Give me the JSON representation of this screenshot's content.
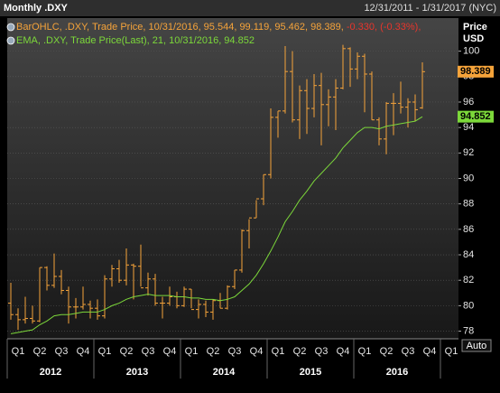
{
  "chart_data": {
    "type": "ohlc",
    "title": "Monthly .DXY",
    "date_range": "12/31/2011 - 1/31/2017 (NYC)",
    "y_axis_title": [
      "Price",
      "USD"
    ],
    "auto_button": "Auto",
    "categories": [
      null,
      "Q1",
      null,
      null,
      "Q2",
      null,
      null,
      "Q3",
      null,
      null,
      "Q4",
      null,
      null,
      "Q1",
      null,
      null,
      "Q2",
      null,
      null,
      "Q3",
      null,
      null,
      "Q4",
      null,
      null,
      "Q1",
      null,
      null,
      "Q2",
      null,
      null,
      "Q3",
      null,
      null,
      "Q4",
      null,
      null,
      "Q1",
      null,
      null,
      "Q2",
      null,
      null,
      "Q3",
      null,
      null,
      "Q4",
      null,
      null,
      "Q1",
      null,
      null,
      "Q2",
      null,
      null,
      "Q3",
      null,
      null,
      "Q4",
      null,
      null,
      "Q1"
    ],
    "year_groups": [
      "2012",
      "2013",
      "2014",
      "2015",
      "2016"
    ],
    "ylim": [
      77.4,
      102.6
    ],
    "yticks": [
      78,
      80,
      82,
      84,
      86,
      88,
      90,
      92,
      94,
      96,
      98,
      100
    ],
    "grid": true,
    "series": [
      {
        "name": "BarOHLC, .DXY, Trade Price, 10/31/2016, 95.544, 99.119, 95.462, 98.389,",
        "change_label": "-0.330, (-0.33%),",
        "change_color": "#e8352c",
        "type": "ohlc",
        "color": "#f5a33a",
        "open": [
          80.2,
          79.3,
          78.9,
          79.0,
          78.8,
          83.0,
          81.6,
          82.3,
          81.2,
          79.9,
          79.9,
          80.1,
          79.8,
          79.2,
          82.1,
          82.9,
          82.0,
          83.2,
          83.1,
          81.4,
          82.1,
          80.2,
          80.2,
          80.7,
          80.0,
          81.3,
          79.7,
          80.1,
          79.5,
          80.4,
          79.8,
          81.5,
          82.8,
          85.9,
          86.9,
          88.4,
          90.3,
          94.8,
          95.3,
          98.4,
          94.6,
          96.9,
          95.5,
          97.3,
          95.8,
          96.4,
          97.1,
          100.2,
          98.6,
          99.6,
          98.2,
          94.6,
          93.1,
          95.9,
          95.9,
          95.6,
          96.0,
          95.544,
          null,
          null,
          null,
          null
        ],
        "high": [
          81.8,
          79.8,
          80.7,
          80.0,
          83.0,
          83.1,
          84.1,
          82.8,
          81.5,
          80.6,
          81.5,
          80.4,
          80.5,
          82.4,
          83.2,
          83.6,
          84.5,
          83.3,
          84.8,
          82.6,
          82.5,
          80.7,
          81.5,
          81.1,
          81.5,
          81.3,
          80.5,
          80.4,
          80.5,
          81.0,
          81.6,
          82.8,
          86.0,
          86.8,
          88.3,
          90.3,
          95.5,
          95.3,
          100.4,
          100.0,
          97.3,
          97.8,
          98.2,
          98.3,
          97.0,
          97.8,
          100.5,
          100.3,
          99.9,
          99.8,
          98.4,
          94.8,
          96.0,
          96.7,
          97.6,
          96.3,
          96.6,
          99.119,
          null,
          null,
          null,
          null
        ],
        "low": [
          78.9,
          78.1,
          78.6,
          78.6,
          78.7,
          81.2,
          81.4,
          80.9,
          78.6,
          79.0,
          79.7,
          79.0,
          78.9,
          79.0,
          81.5,
          81.8,
          81.6,
          80.5,
          81.5,
          80.8,
          80.0,
          79.0,
          80.0,
          79.8,
          79.9,
          79.8,
          79.0,
          79.1,
          78.9,
          79.8,
          79.7,
          81.3,
          82.6,
          84.5,
          86.9,
          87.9,
          90.0,
          93.2,
          95.1,
          94.4,
          93.1,
          93.5,
          94.8,
          92.6,
          94.1,
          93.8,
          97.0,
          97.2,
          97.8,
          95.2,
          94.6,
          92.6,
          91.9,
          93.4,
          95.1,
          94.0,
          94.5,
          95.462,
          null,
          null,
          null,
          null
        ],
        "close": [
          79.3,
          78.9,
          79.0,
          78.8,
          83.0,
          81.6,
          82.3,
          81.2,
          79.9,
          79.9,
          80.1,
          79.8,
          79.2,
          82.1,
          82.9,
          82.0,
          83.2,
          83.1,
          81.4,
          82.1,
          80.2,
          80.2,
          80.7,
          80.0,
          81.3,
          79.7,
          80.1,
          79.5,
          80.4,
          79.8,
          81.5,
          82.8,
          85.9,
          86.9,
          88.4,
          90.3,
          94.8,
          95.3,
          98.4,
          94.6,
          96.9,
          95.5,
          97.3,
          95.8,
          96.4,
          97.1,
          100.2,
          98.6,
          99.6,
          98.2,
          94.6,
          93.1,
          95.9,
          95.9,
          95.6,
          96.0,
          95.4,
          98.389,
          null,
          null,
          null,
          null
        ]
      },
      {
        "name": "EMA, .DXY, Trade Price(Last), 21, 10/31/2016, 94.852",
        "type": "line",
        "color": "#7cd83a",
        "values": [
          77.8,
          77.9,
          78.0,
          78.1,
          78.5,
          78.8,
          79.2,
          79.3,
          79.3,
          79.4,
          79.5,
          79.5,
          79.5,
          79.7,
          80.0,
          80.2,
          80.5,
          80.7,
          80.8,
          80.9,
          80.8,
          80.8,
          80.8,
          80.7,
          80.7,
          80.6,
          80.6,
          80.5,
          80.5,
          80.4,
          80.5,
          80.7,
          81.2,
          81.7,
          82.4,
          83.3,
          84.3,
          85.4,
          86.6,
          87.4,
          88.3,
          89.0,
          89.8,
          90.4,
          91.0,
          91.6,
          92.4,
          93.0,
          93.6,
          94.0,
          94.0,
          93.9,
          94.1,
          94.2,
          94.3,
          94.4,
          94.5,
          94.852,
          null,
          null,
          null,
          null
        ]
      }
    ]
  }
}
